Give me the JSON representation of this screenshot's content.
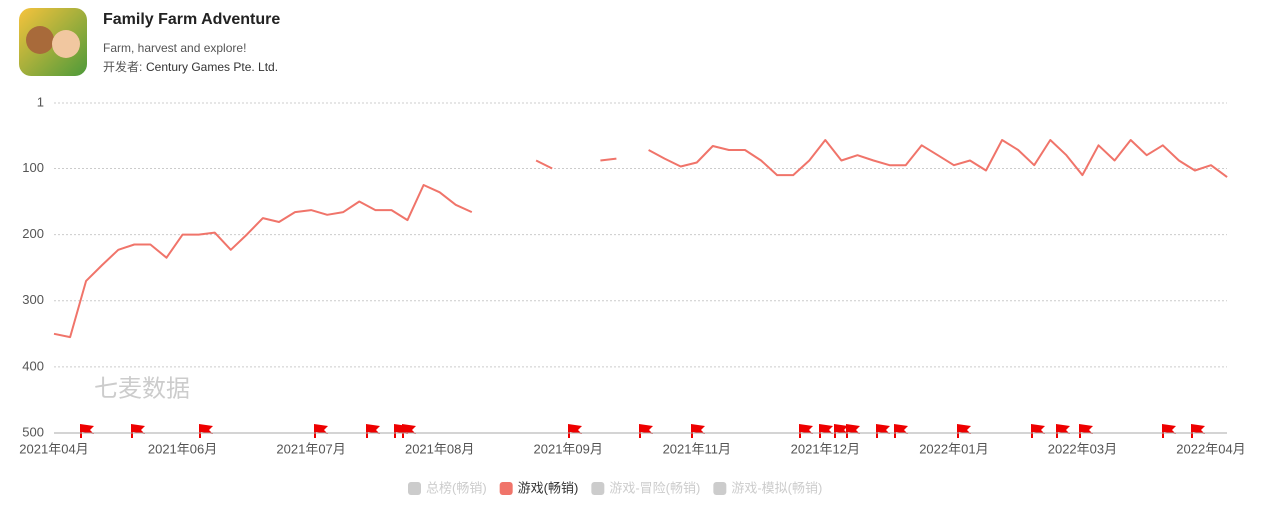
{
  "header": {
    "title": "Family Farm Adventure",
    "subtitle": "Farm, harvest and explore!",
    "developer_label": "开发者:",
    "developer": "Century Games Pte. Ltd."
  },
  "chart_data": {
    "type": "line",
    "watermark": "七麦数据",
    "categories": [
      "2021年04月",
      null,
      null,
      null,
      null,
      null,
      null,
      null,
      "2021年06月",
      null,
      null,
      null,
      null,
      null,
      null,
      null,
      "2021年07月",
      null,
      null,
      null,
      null,
      null,
      null,
      null,
      "2021年08月",
      null,
      null,
      null,
      null,
      null,
      null,
      null,
      "2021年09月",
      null,
      null,
      null,
      null,
      null,
      null,
      null,
      "2021年11月",
      null,
      null,
      null,
      null,
      null,
      null,
      null,
      "2021年12月",
      null,
      null,
      null,
      null,
      null,
      null,
      null,
      "2022年01月",
      null,
      null,
      null,
      null,
      null,
      null,
      null,
      "2022年03月",
      null,
      null,
      null,
      null,
      null,
      null,
      null,
      "2022年04月",
      null
    ],
    "series": [
      {
        "name": "游戏(畅销)",
        "color": "#f0746a",
        "values": [
          350,
          355,
          270,
          246,
          223,
          215,
          215,
          235,
          200,
          200,
          197,
          223,
          200,
          175,
          181,
          166,
          163,
          170,
          166,
          150,
          163,
          163,
          178,
          125,
          136,
          155,
          166,
          null,
          null,
          null,
          88,
          100,
          null,
          null,
          88,
          85,
          null,
          72,
          85,
          97,
          91,
          66,
          72,
          72,
          88,
          110,
          110,
          88,
          57,
          88,
          80,
          88,
          95,
          95,
          65,
          80,
          95,
          88,
          103,
          57,
          72,
          95,
          57,
          80,
          110,
          65,
          88,
          57,
          80,
          65,
          88,
          103,
          95,
          113
        ]
      }
    ],
    "inactive_legend": [
      "总榜(畅销)",
      "游戏-冒险(畅销)",
      "游戏-模拟(畅销)"
    ],
    "inactive_color": "#cccccc",
    "ylim": [
      500,
      1
    ],
    "yticks": [
      1,
      100,
      200,
      300,
      400,
      500
    ],
    "grid": true
  }
}
